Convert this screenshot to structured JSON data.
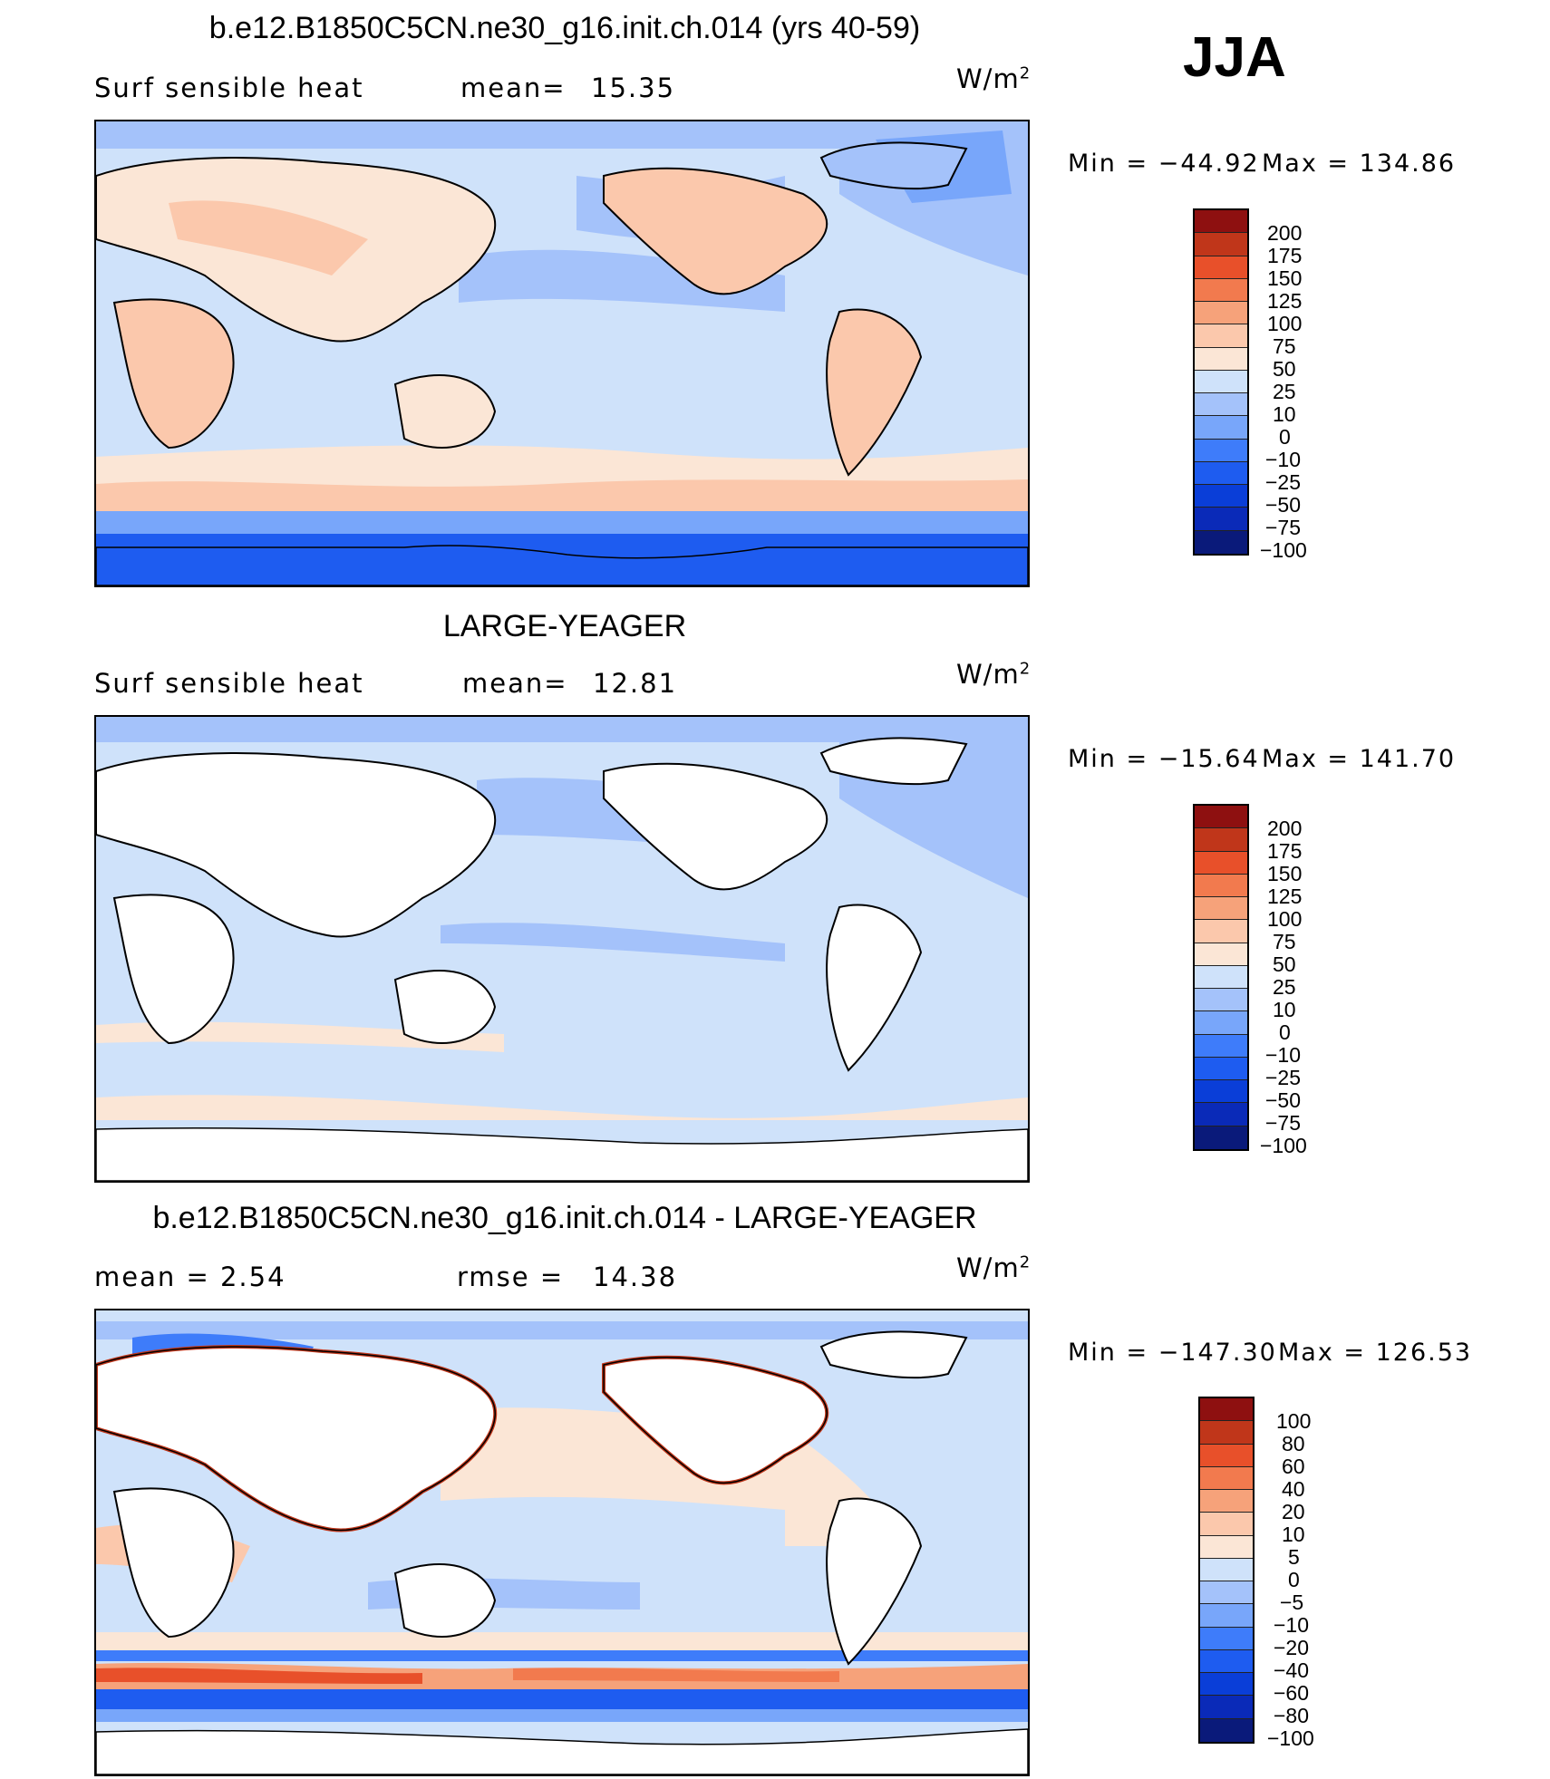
{
  "season": "JJA",
  "units_text": "W/m",
  "units_exp": "2",
  "colors": {
    "levels_abs": [
      "#0a1a7a",
      "#0a2ab8",
      "#0a3ed8",
      "#1e5cf0",
      "#3e7cfa",
      "#78a6fa",
      "#a4c2fa",
      "#cfe2fa",
      "#fbe6d6",
      "#fbc8ac",
      "#f6a27a",
      "#f27a4e",
      "#e8502a",
      "#c0361a",
      "#8e1010"
    ],
    "ocean_base": "#cfe2fa",
    "land_default": "#ffffff",
    "coast": "#000000"
  },
  "panels": [
    {
      "title": "b.e12.B1850C5CN.ne30_g16.init.ch.014 (yrs 40-59)",
      "left_label": "Surf  sensible  heat",
      "stat_label": "mean=",
      "stat_value": "15.35",
      "min_text": "Min  =  −44.92",
      "max_text": "Max  =  134.86",
      "min_value": -44.92,
      "max_value": 134.86,
      "mean_value": 15.35,
      "levels": [
        "200",
        "175",
        "150",
        "125",
        "100",
        "75",
        "50",
        "25",
        "10",
        "0",
        "−10",
        "−25",
        "−50",
        "−75",
        "−100"
      ]
    },
    {
      "title": "LARGE-YEAGER",
      "left_label": "Surf  sensible  heat",
      "stat_label": "mean=",
      "stat_value": "12.81",
      "min_text": "Min  =  −15.64",
      "max_text": "Max  =  141.70",
      "min_value": -15.64,
      "max_value": 141.7,
      "mean_value": 12.81,
      "levels": [
        "200",
        "175",
        "150",
        "125",
        "100",
        "75",
        "50",
        "25",
        "10",
        "0",
        "−10",
        "−25",
        "−50",
        "−75",
        "−100"
      ]
    },
    {
      "title": "b.e12.B1850C5CN.ne30_g16.init.ch.014 - LARGE-YEAGER",
      "left_label": "mean  =      2.54",
      "stat_label": "rmse  =",
      "stat_value": "14.38",
      "min_text": "Min  =  −147.30",
      "max_text": "Max  =  126.53",
      "min_value": -147.3,
      "max_value": 126.53,
      "mean_value": 2.54,
      "rmse_value": 14.38,
      "levels": [
        "100",
        "80",
        "60",
        "40",
        "20",
        "10",
        "5",
        "0",
        "−5",
        "−10",
        "−20",
        "−40",
        "−60",
        "−80",
        "−100"
      ]
    }
  ]
}
